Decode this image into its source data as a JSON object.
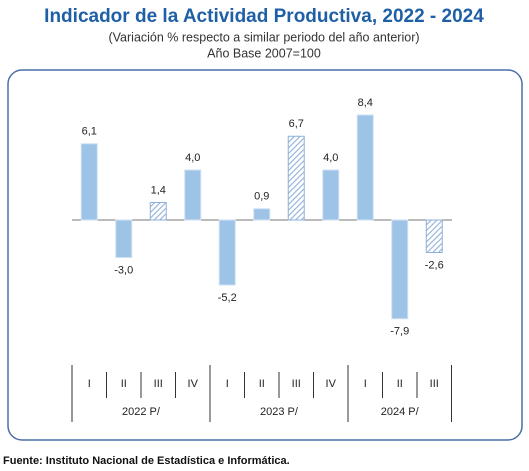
{
  "chart_data": {
    "type": "bar",
    "title": "Indicador de la Actividad Productiva, 2022 - 2024",
    "subtitle": [
      "(Variación % respecto a similar periodo del año anterior)",
      "Año Base 2007=100"
    ],
    "categories": [
      "I",
      "II",
      "III",
      "IV",
      "I",
      "II",
      "III",
      "IV",
      "I",
      "II",
      "III"
    ],
    "groups": [
      {
        "label": "2022 P/",
        "size": 4
      },
      {
        "label": "2023 P/",
        "size": 4
      },
      {
        "label": "2024 P/",
        "size": 3
      }
    ],
    "values": [
      6.1,
      -3.0,
      1.4,
      4.0,
      -5.2,
      0.9,
      6.7,
      4.0,
      8.4,
      -7.9,
      -2.6
    ],
    "value_labels": [
      "6,1",
      "-3,0",
      "1,4",
      "4,0",
      "-5,2",
      "0,9",
      "6,7",
      "4,0",
      "8,4",
      "-7,9",
      "-2,6"
    ],
    "hatched": [
      false,
      false,
      true,
      false,
      false,
      false,
      true,
      false,
      false,
      false,
      true
    ],
    "color": "#9dc3e6",
    "source": "Fuente: Instituto Nacional de Estadística e Informática."
  }
}
